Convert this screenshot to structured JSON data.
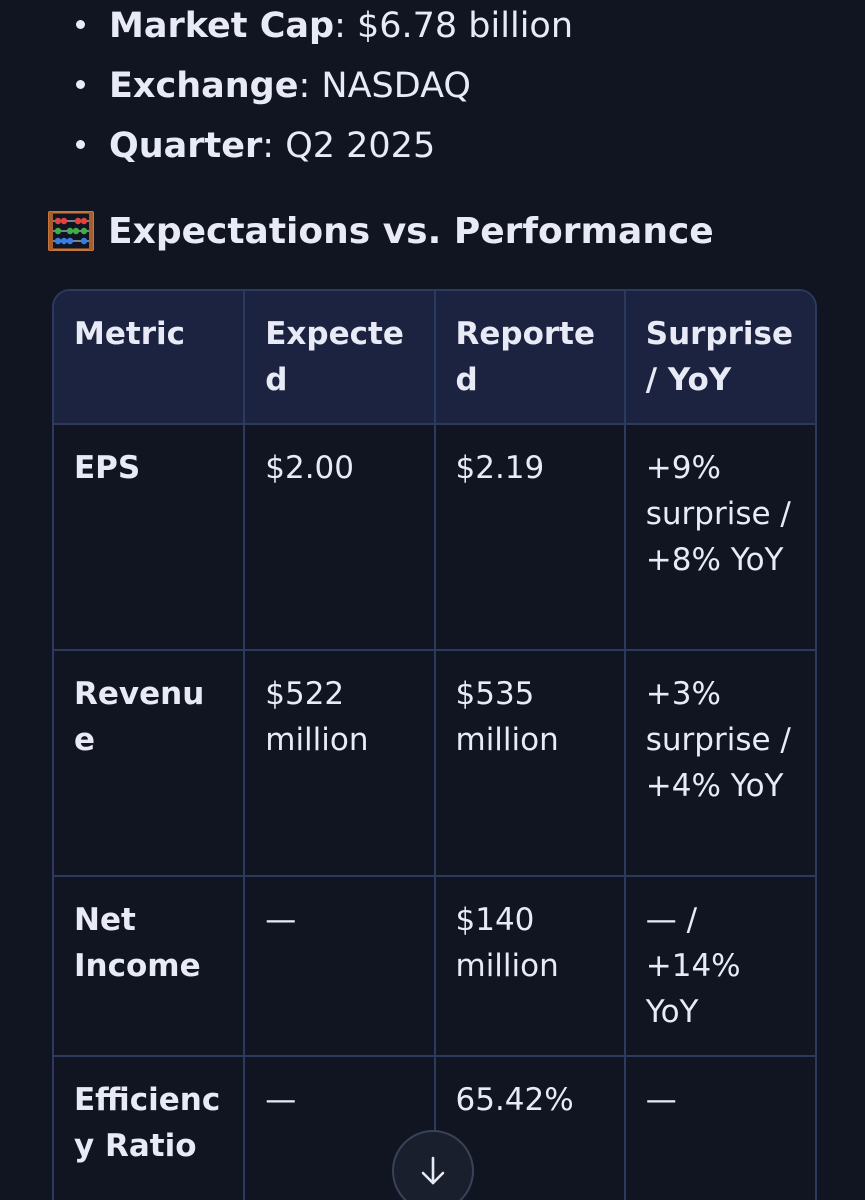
{
  "facts": [
    {
      "label": "Market Cap",
      "sep": ": ",
      "value": "$6.78 billion"
    },
    {
      "label": "Exchange",
      "sep": ": ",
      "value": "NASDAQ"
    },
    {
      "label": "Quarter",
      "sep": ": ",
      "value": "Q2 2025"
    }
  ],
  "section": {
    "icon": "abacus-icon",
    "title": "Expectations vs. Performance"
  },
  "table": {
    "headers": [
      "Metric",
      "Expected",
      "Reported",
      "Surprise / YoY"
    ],
    "rows": [
      [
        "EPS",
        "$2.00",
        "$2.19",
        "+9% surprise / +8% YoY"
      ],
      [
        "Revenue",
        "$522 million",
        "$535 million",
        "+3% surprise / +4% YoY"
      ],
      [
        "Net Income",
        "—",
        "$140 million",
        "— / +14% YoY"
      ],
      [
        "Efficiency Ratio",
        "—",
        "65.42%",
        "—"
      ]
    ]
  },
  "scroll_button": {
    "icon": "arrow-down-icon"
  },
  "colors": {
    "background": "#111522",
    "header_bg": "#1b2340",
    "border": "#2c3a5e",
    "text": "#e8ebf5"
  }
}
